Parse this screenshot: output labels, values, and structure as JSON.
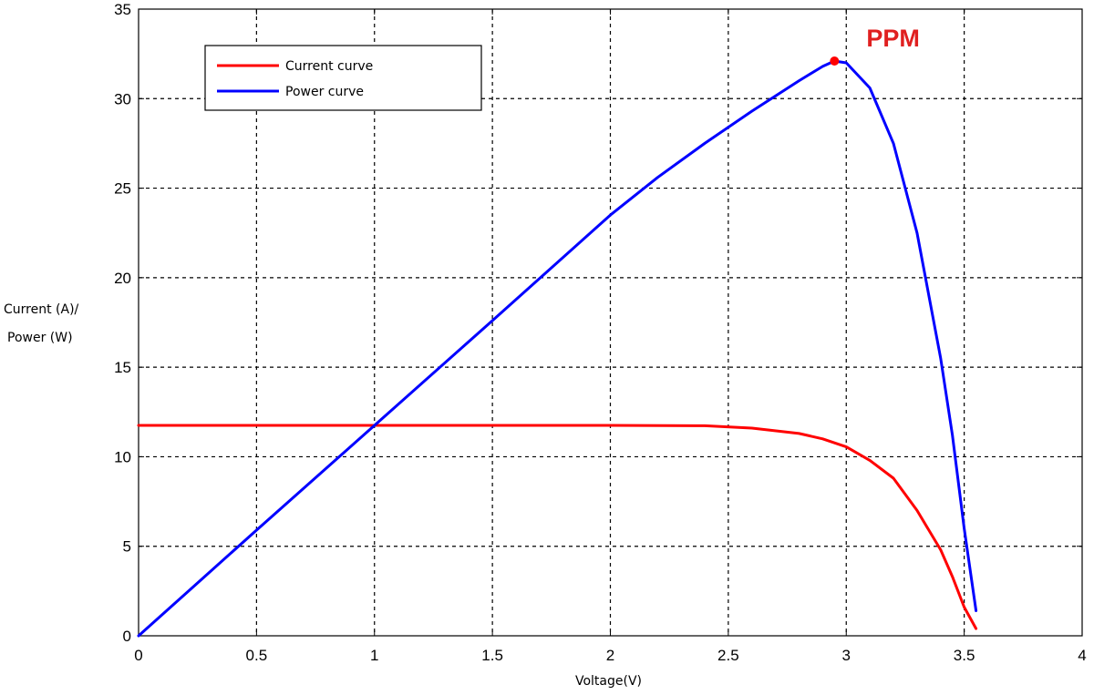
{
  "chart_data": {
    "type": "line",
    "title": "",
    "xlabel": "Voltage(V)",
    "ylabel_line1": "Current (A)/",
    "ylabel_line2": "Power (W)",
    "xlim": [
      0,
      4
    ],
    "ylim": [
      0,
      35
    ],
    "xticks": [
      "0",
      "0.5",
      "1",
      "1.5",
      "2",
      "2.5",
      "3",
      "3.5",
      "4"
    ],
    "yticks": [
      "0",
      "5",
      "10",
      "15",
      "20",
      "25",
      "30",
      "35"
    ],
    "grid": true,
    "legend_position": "top-left",
    "series": [
      {
        "name": "Current curve",
        "color": "#ff0000",
        "points": [
          [
            0,
            11.75
          ],
          [
            0.5,
            11.75
          ],
          [
            1.0,
            11.75
          ],
          [
            1.5,
            11.75
          ],
          [
            2.0,
            11.75
          ],
          [
            2.4,
            11.73
          ],
          [
            2.6,
            11.6
          ],
          [
            2.8,
            11.3
          ],
          [
            2.9,
            11.0
          ],
          [
            3.0,
            10.55
          ],
          [
            3.1,
            9.8
          ],
          [
            3.2,
            8.8
          ],
          [
            3.3,
            7.0
          ],
          [
            3.4,
            4.8
          ],
          [
            3.45,
            3.3
          ],
          [
            3.5,
            1.6
          ],
          [
            3.55,
            0.4
          ]
        ]
      },
      {
        "name": "Power curve",
        "color": "#0000ff",
        "points": [
          [
            0,
            0
          ],
          [
            0.5,
            5.9
          ],
          [
            1.0,
            11.75
          ],
          [
            1.5,
            17.6
          ],
          [
            2.0,
            23.5
          ],
          [
            2.2,
            25.6
          ],
          [
            2.4,
            27.5
          ],
          [
            2.6,
            29.3
          ],
          [
            2.8,
            31.0
          ],
          [
            2.9,
            31.8
          ],
          [
            2.95,
            32.1
          ],
          [
            3.0,
            32.0
          ],
          [
            3.1,
            30.6
          ],
          [
            3.2,
            27.5
          ],
          [
            3.3,
            22.5
          ],
          [
            3.4,
            15.5
          ],
          [
            3.45,
            11.2
          ],
          [
            3.5,
            6.0
          ],
          [
            3.55,
            1.4
          ]
        ]
      }
    ],
    "annotation": {
      "text": "PPM",
      "point": [
        2.95,
        32.1
      ],
      "color": "#ff0000"
    }
  }
}
